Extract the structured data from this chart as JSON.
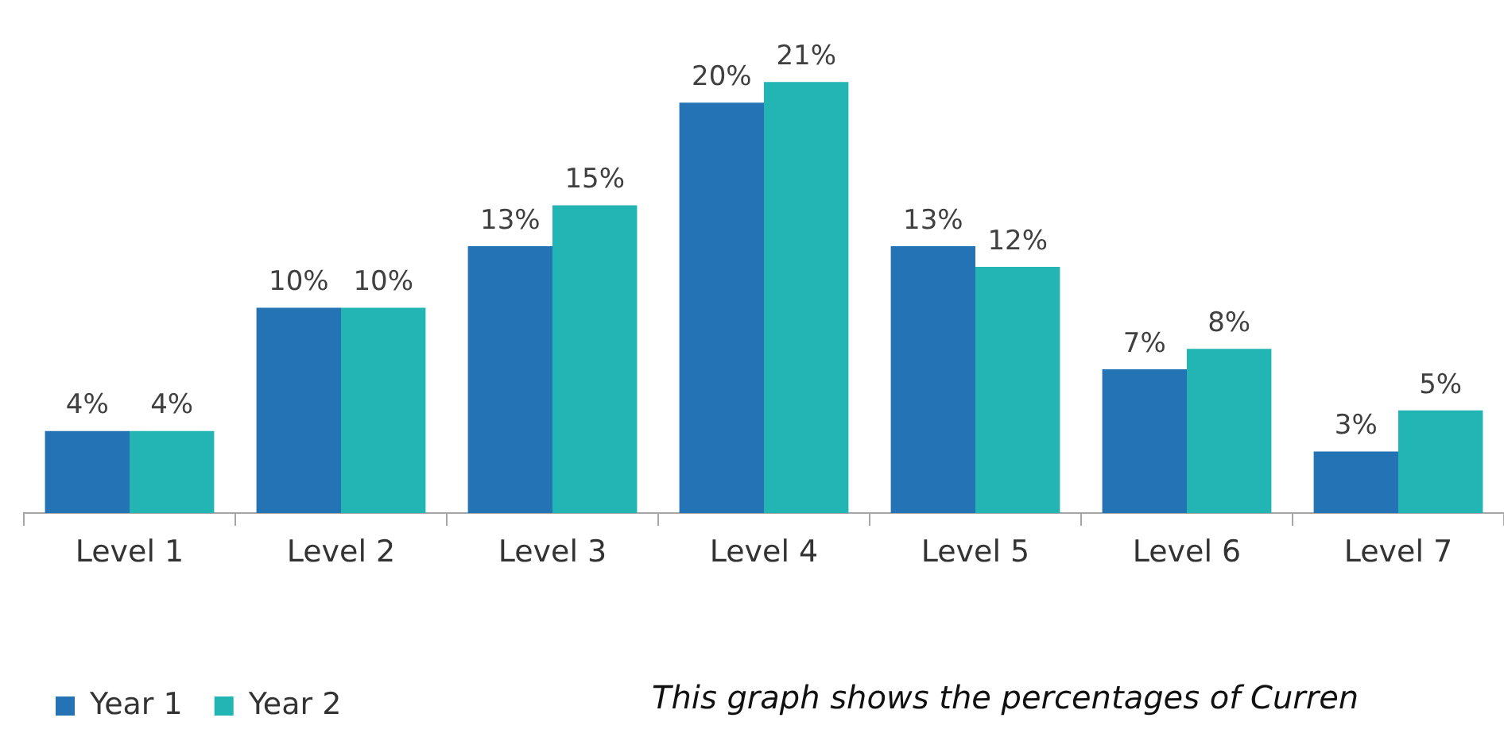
{
  "chart_data": {
    "type": "bar",
    "categories": [
      "Level 1",
      "Level 2",
      "Level 3",
      "Level 4",
      "Level 5",
      "Level 6",
      "Level 7"
    ],
    "series": [
      {
        "name": "Year 1",
        "color": "#2474b5",
        "values": [
          4,
          10,
          13,
          20,
          13,
          7,
          3
        ],
        "value_labels": [
          "4%",
          "10%",
          "13%",
          "20%",
          "13%",
          "7%",
          "3%"
        ]
      },
      {
        "name": "Year 2",
        "color": "#23b5b4",
        "values": [
          4,
          10,
          15,
          21,
          12,
          8,
          5
        ],
        "value_labels": [
          "4%",
          "10%",
          "15%",
          "21%",
          "12%",
          "8%",
          "5%"
        ]
      }
    ],
    "legend": "bottom left",
    "annotations": [
      "This graph shows the percentages of Curren"
    ]
  }
}
